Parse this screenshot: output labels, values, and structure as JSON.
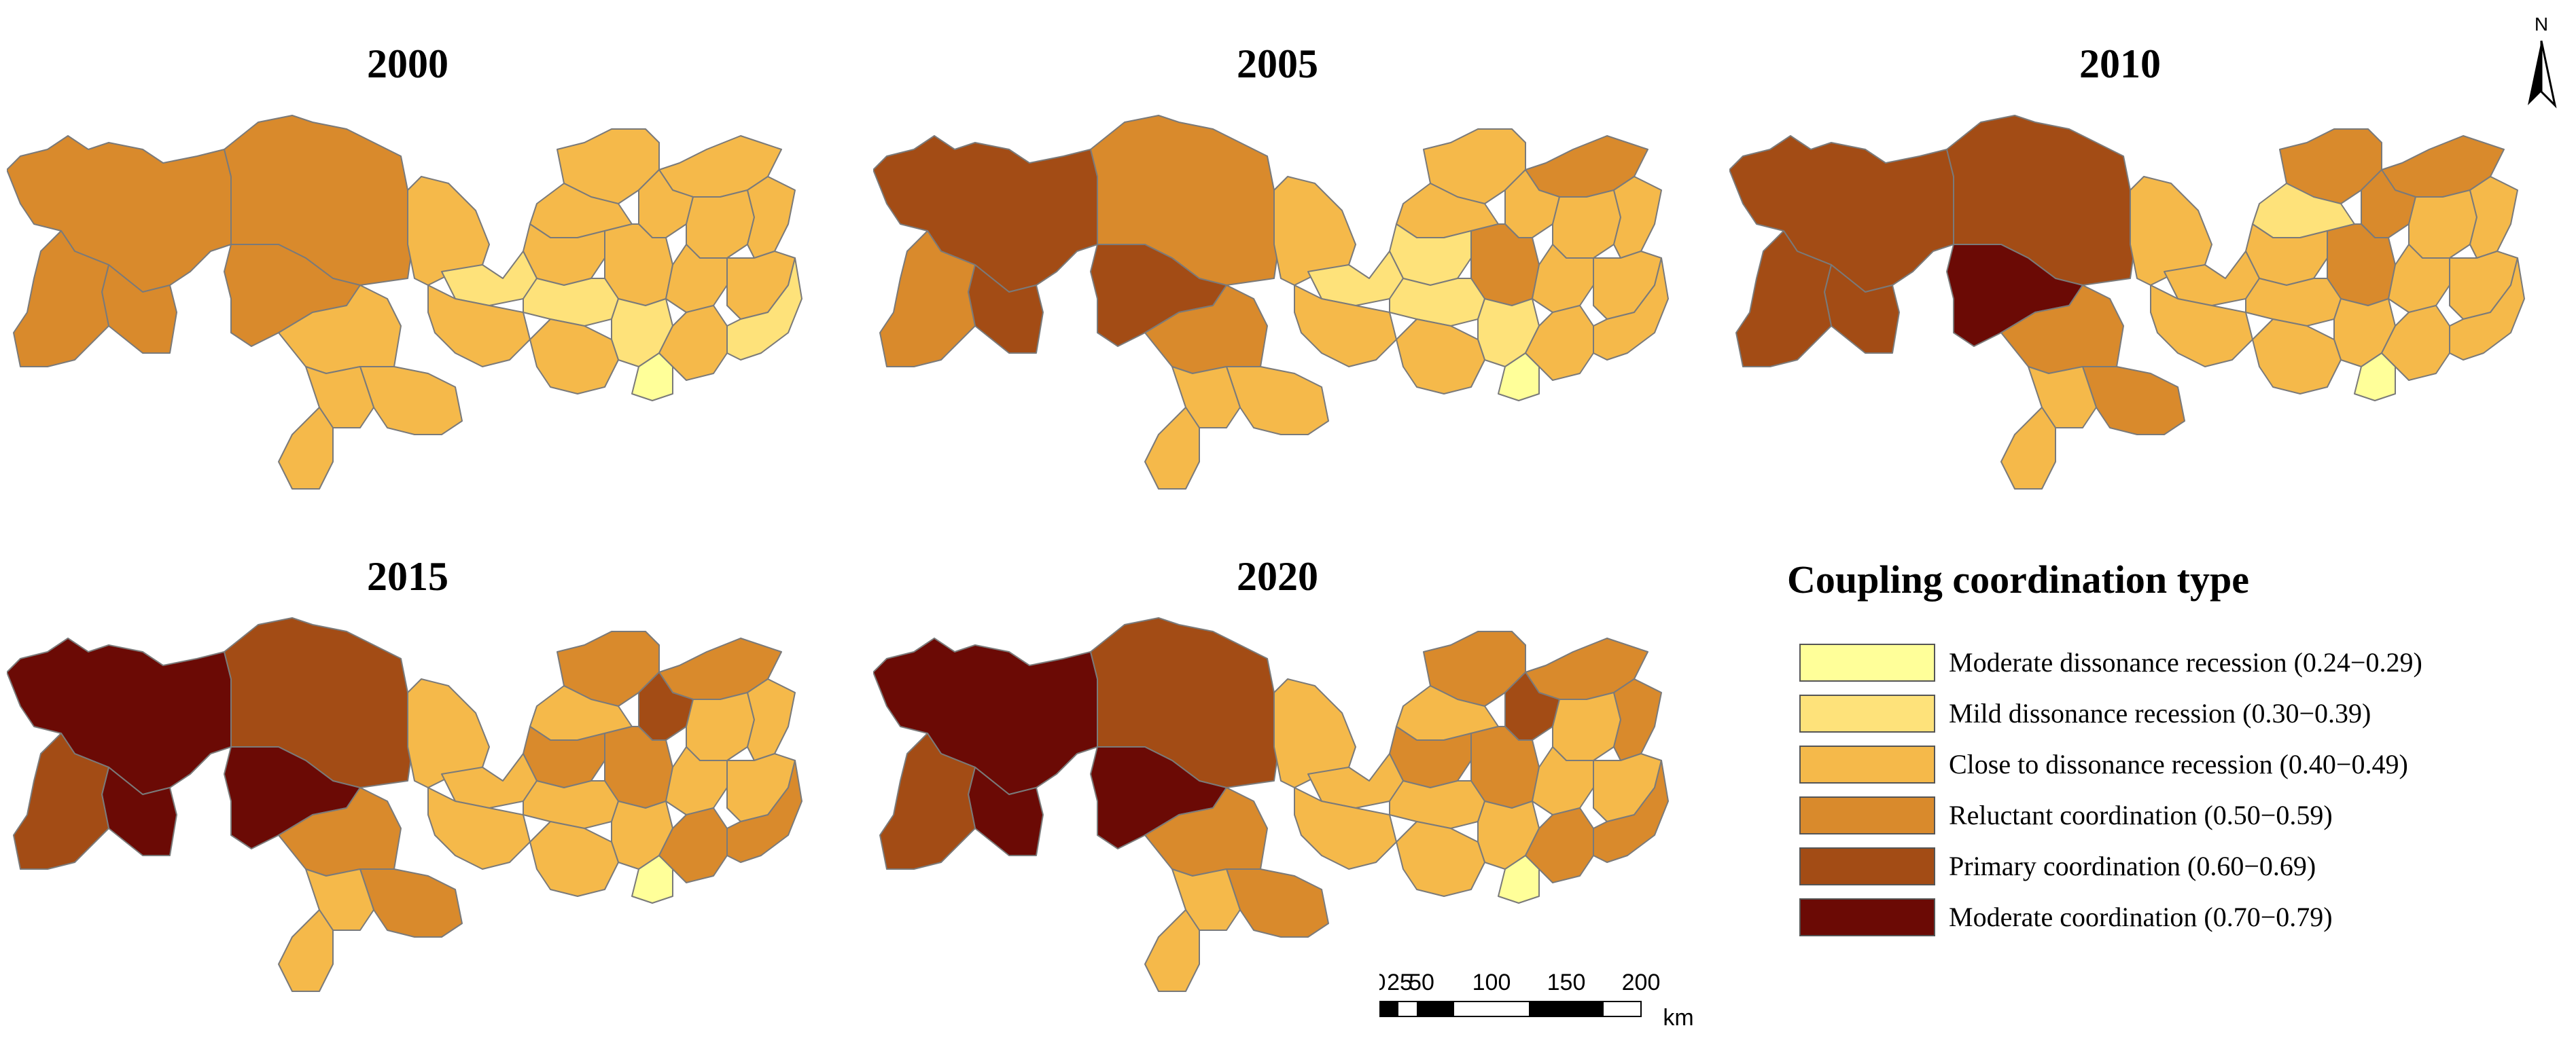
{
  "legend": {
    "title": "Coupling coordination type",
    "classes": [
      {
        "label": "Moderate dissonance recession (0.24−0.29)",
        "color": "#ffff99"
      },
      {
        "label": "Mild dissonance recession (0.30−0.39)",
        "color": "#fee27a"
      },
      {
        "label": "Close to dissonance recession (0.40−0.49)",
        "color": "#f5b94a"
      },
      {
        "label": "Reluctant coordination (0.50−0.59)",
        "color": "#d98a2c"
      },
      {
        "label": "Primary coordination (0.60−0.69)",
        "color": "#a34c15"
      },
      {
        "label": "Moderate coordination (0.70−0.79)",
        "color": "#6b0a05"
      }
    ]
  },
  "north_arrow": {
    "label": "N",
    "icon": "north-arrow-icon"
  },
  "scalebar": {
    "ticks": [
      "0",
      "25",
      "50",
      "100",
      "150",
      "200"
    ],
    "unit": "km"
  },
  "maps": [
    {
      "year": "2000",
      "classes": [
        3,
        3,
        3,
        3,
        3,
        2,
        2,
        2,
        2,
        2,
        2,
        2,
        2,
        2,
        2,
        2,
        2,
        2,
        2,
        1,
        1,
        1,
        0,
        2,
        2,
        2,
        2,
        1
      ]
    },
    {
      "year": "2005",
      "classes": [
        4,
        4,
        3,
        3,
        4,
        3,
        2,
        2,
        2,
        2,
        2,
        2,
        3,
        2,
        1,
        3,
        2,
        2,
        2,
        1,
        1,
        1,
        0,
        2,
        2,
        2,
        2,
        2
      ]
    },
    {
      "year": "2010",
      "classes": [
        4,
        4,
        4,
        4,
        5,
        3,
        2,
        3,
        2,
        2,
        3,
        1,
        3,
        3,
        2,
        3,
        2,
        2,
        2,
        2,
        2,
        2,
        0,
        2,
        2,
        2,
        2,
        2
      ]
    },
    {
      "year": "2015",
      "classes": [
        5,
        5,
        4,
        4,
        5,
        3,
        2,
        3,
        2,
        2,
        3,
        2,
        3,
        4,
        3,
        3,
        2,
        2,
        2,
        2,
        2,
        2,
        0,
        2,
        2,
        3,
        2,
        3
      ]
    },
    {
      "year": "2020",
      "classes": [
        5,
        5,
        4,
        4,
        5,
        3,
        2,
        3,
        2,
        2,
        3,
        2,
        3,
        4,
        3,
        3,
        2,
        3,
        2,
        2,
        2,
        2,
        0,
        2,
        2,
        3,
        2,
        3
      ]
    }
  ]
}
